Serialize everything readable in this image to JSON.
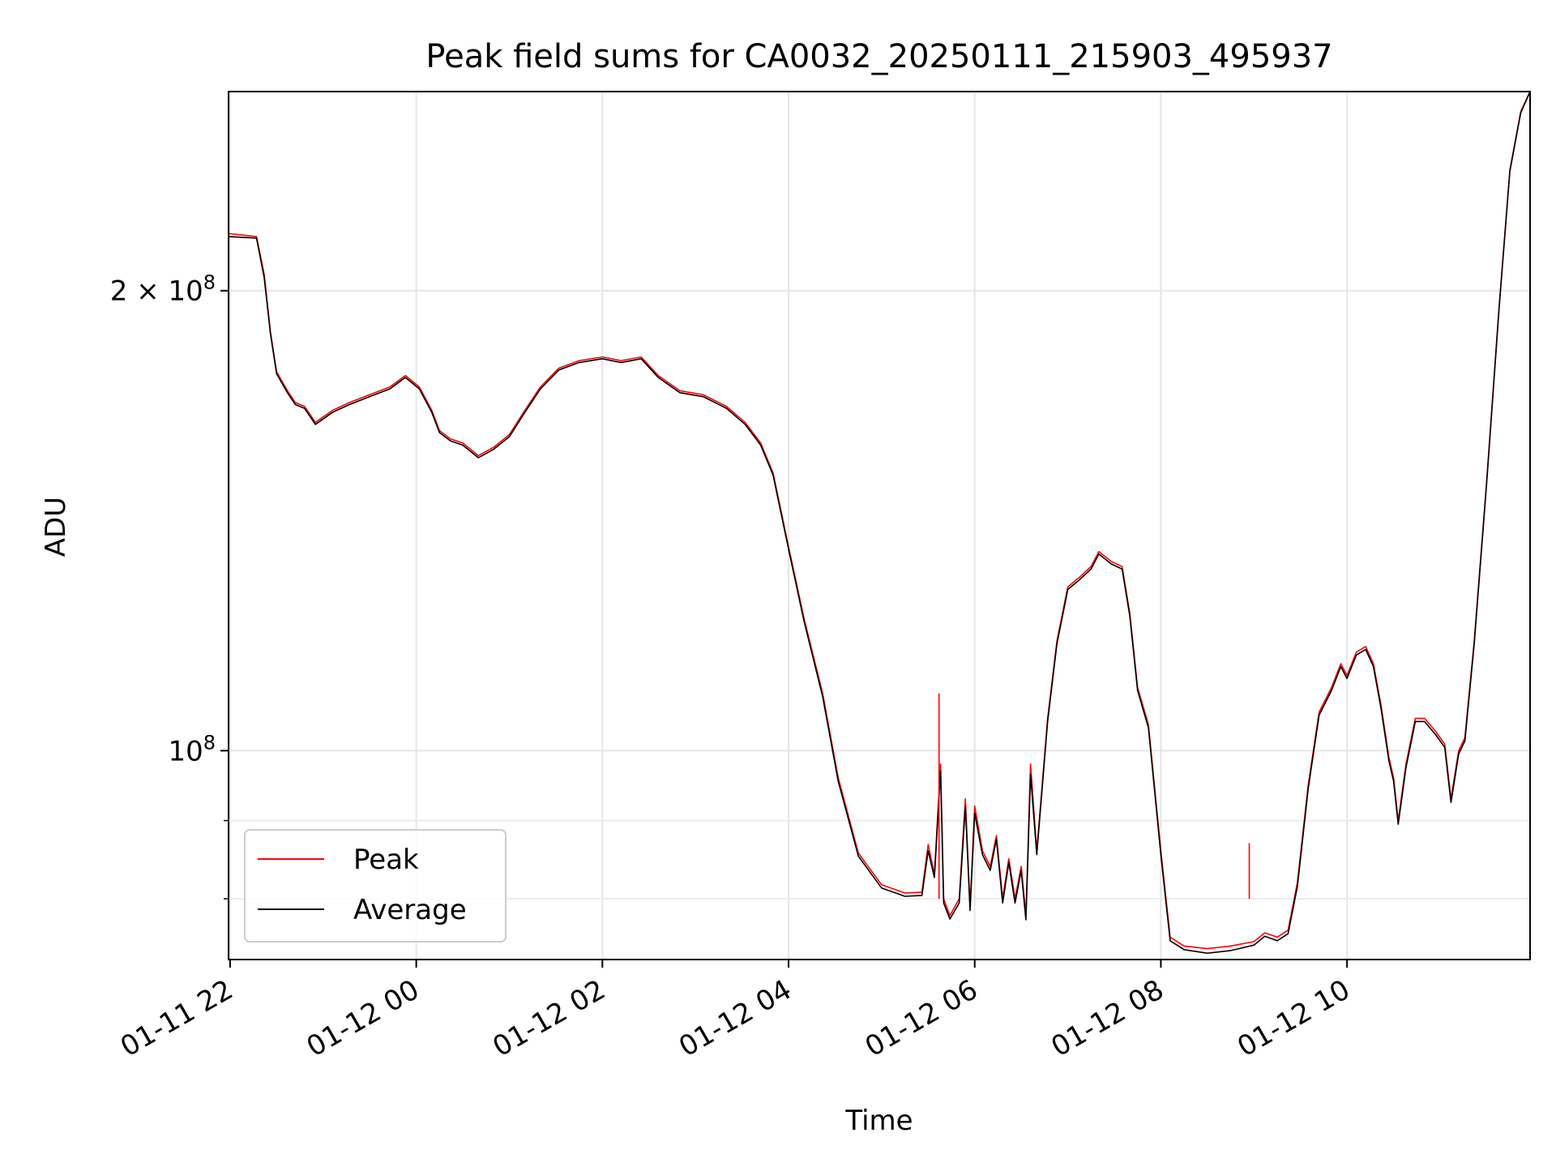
{
  "chart_data": {
    "type": "line",
    "title": "Peak field sums for CA0032_20250111_215903_495937",
    "xlabel": "Time",
    "ylabel": "ADU",
    "yscale": "log",
    "xlim": [
      "2025-01-11 21:59",
      "2025-01-12 11:58"
    ],
    "ylim": [
      73000000,
      270000000
    ],
    "grid": true,
    "legend": "lower-left",
    "xticks": [
      {
        "x": "2025-01-11 22:00",
        "label": "01-11 22"
      },
      {
        "x": "2025-01-12 00:00",
        "label": "01-12 00"
      },
      {
        "x": "2025-01-12 02:00",
        "label": "01-12 02"
      },
      {
        "x": "2025-01-12 04:00",
        "label": "01-12 04"
      },
      {
        "x": "2025-01-12 06:00",
        "label": "01-12 06"
      },
      {
        "x": "2025-01-12 08:00",
        "label": "01-12 08"
      },
      {
        "x": "2025-01-12 10:00",
        "label": "01-12 10"
      }
    ],
    "yticks_major": [
      {
        "y": 100000000,
        "base": "10",
        "exp": "8",
        "coef": ""
      },
      {
        "y": 200000000,
        "base": "10",
        "exp": "8",
        "coef": "2 × "
      }
    ],
    "yticks_minor": [
      80000000,
      90000000
    ],
    "series": [
      {
        "name": "Peak",
        "color": "#ff0000",
        "points": [
          [
            "2025-01-11 21:59",
            218000000.0
          ],
          [
            "2025-01-11 22:17",
            217000000.0
          ],
          [
            "2025-01-11 22:22",
            205000000.0
          ],
          [
            "2025-01-11 22:26",
            188000000.0
          ],
          [
            "2025-01-11 22:30",
            177000000.0
          ],
          [
            "2025-01-11 22:37",
            172000000.0
          ],
          [
            "2025-01-11 22:42",
            169000000.0
          ],
          [
            "2025-01-11 22:48",
            168000000.0
          ],
          [
            "2025-01-11 22:55",
            164000000.0
          ],
          [
            "2025-01-11 23:06",
            167000000.0
          ],
          [
            "2025-01-11 23:17",
            169000000.0
          ],
          [
            "2025-01-11 23:30",
            171000000.0
          ],
          [
            "2025-01-11 23:43",
            173000000.0
          ],
          [
            "2025-01-11 23:53",
            176000000.0
          ],
          [
            "2025-01-12 00:02",
            173000000.0
          ],
          [
            "2025-01-12 00:10",
            167000000.0
          ],
          [
            "2025-01-12 00:15",
            162000000.0
          ],
          [
            "2025-01-12 00:22",
            160000000.0
          ],
          [
            "2025-01-12 00:30",
            159000000.0
          ],
          [
            "2025-01-12 00:40",
            156000000.0
          ],
          [
            "2025-01-12 00:50",
            158000000.0
          ],
          [
            "2025-01-12 01:00",
            161000000.0
          ],
          [
            "2025-01-12 01:10",
            167000000.0
          ],
          [
            "2025-01-12 01:20",
            173000000.0
          ],
          [
            "2025-01-12 01:32",
            178000000.0
          ],
          [
            "2025-01-12 01:45",
            180000000.0
          ],
          [
            "2025-01-12 02:00",
            181000000.0
          ],
          [
            "2025-01-12 02:12",
            180000000.0
          ],
          [
            "2025-01-12 02:25",
            181000000.0
          ],
          [
            "2025-01-12 02:36",
            176000000.0
          ],
          [
            "2025-01-12 02:50",
            172000000.0
          ],
          [
            "2025-01-12 03:05",
            171000000.0
          ],
          [
            "2025-01-12 03:20",
            168000000.0
          ],
          [
            "2025-01-12 03:32",
            164000000.0
          ],
          [
            "2025-01-12 03:42",
            159000000.0
          ],
          [
            "2025-01-12 03:50",
            152000000.0
          ],
          [
            "2025-01-12 04:00",
            136000000.0
          ],
          [
            "2025-01-12 04:10",
            122000000.0
          ],
          [
            "2025-01-12 04:22",
            109000000.0
          ],
          [
            "2025-01-12 04:32",
            96000000.0
          ],
          [
            "2025-01-12 04:45",
            85700000.0
          ],
          [
            "2025-01-12 05:00",
            81700000.0
          ],
          [
            "2025-01-12 05:15",
            80700000.0
          ],
          [
            "2025-01-12 05:26",
            80800000.0
          ],
          [
            "2025-01-12 05:30",
            86800000.0
          ],
          [
            "2025-01-12 05:34",
            83000000.0
          ],
          [
            "2025-01-12 05:38",
            98000000.0
          ],
          [
            "2025-01-12 05:40",
            80000000.0
          ],
          [
            "2025-01-12 05:44",
            78000000.0
          ],
          [
            "2025-01-12 05:50",
            80000000.0
          ],
          [
            "2025-01-12 05:54",
            93000000.0
          ],
          [
            "2025-01-12 05:57",
            79000000.0
          ],
          [
            "2025-01-12 06:00",
            92000000.0
          ],
          [
            "2025-01-12 06:05",
            86000000.0
          ],
          [
            "2025-01-12 06:10",
            84000000.0
          ],
          [
            "2025-01-12 06:14",
            88000000.0
          ],
          [
            "2025-01-12 06:18",
            80000000.0
          ],
          [
            "2025-01-12 06:22",
            85000000.0
          ],
          [
            "2025-01-12 06:26",
            80000000.0
          ],
          [
            "2025-01-12 06:30",
            84000000.0
          ],
          [
            "2025-01-12 06:33",
            78000000.0
          ],
          [
            "2025-01-12 06:36",
            98000000.0
          ],
          [
            "2025-01-12 06:40",
            86000000.0
          ],
          [
            "2025-01-12 06:47",
            105000000.0
          ],
          [
            "2025-01-12 06:53",
            118000000.0
          ],
          [
            "2025-01-12 07:00",
            128000000.0
          ],
          [
            "2025-01-12 07:08",
            130000000.0
          ],
          [
            "2025-01-12 07:15",
            132000000.0
          ],
          [
            "2025-01-12 07:20",
            135000000.0
          ],
          [
            "2025-01-12 07:28",
            133000000.0
          ],
          [
            "2025-01-12 07:35",
            132000000.0
          ],
          [
            "2025-01-12 07:40",
            123000000.0
          ],
          [
            "2025-01-12 07:45",
            110000000.0
          ],
          [
            "2025-01-12 07:52",
            104000000.0
          ],
          [
            "2025-01-12 08:00",
            86000000.0
          ],
          [
            "2025-01-12 08:06",
            75500000.0
          ],
          [
            "2025-01-12 08:15",
            74500000.0
          ],
          [
            "2025-01-12 08:30",
            74200000.0
          ],
          [
            "2025-01-12 08:45",
            74500000.0
          ],
          [
            "2025-01-12 09:00",
            75000000.0
          ],
          [
            "2025-01-12 09:07",
            76000000.0
          ],
          [
            "2025-01-12 09:15",
            75500000.0
          ],
          [
            "2025-01-12 09:22",
            76300000.0
          ],
          [
            "2025-01-12 09:28",
            82000000.0
          ],
          [
            "2025-01-12 09:35",
            95000000.0
          ],
          [
            "2025-01-12 09:42",
            106000000.0
          ],
          [
            "2025-01-12 09:50",
            110000000.0
          ],
          [
            "2025-01-12 09:56",
            114000000.0
          ],
          [
            "2025-01-12 10:00",
            112000000.0
          ],
          [
            "2025-01-12 10:06",
            116000000.0
          ],
          [
            "2025-01-12 10:12",
            117000000.0
          ],
          [
            "2025-01-12 10:17",
            114000000.0
          ],
          [
            "2025-01-12 10:22",
            107000000.0
          ],
          [
            "2025-01-12 10:27",
            99000000.0
          ],
          [
            "2025-01-12 10:30",
            96000000.0
          ],
          [
            "2025-01-12 10:33",
            90000000.0
          ],
          [
            "2025-01-12 10:38",
            98000000.0
          ],
          [
            "2025-01-12 10:44",
            105000000.0
          ],
          [
            "2025-01-12 10:50",
            105000000.0
          ],
          [
            "2025-01-12 10:57",
            103000000.0
          ],
          [
            "2025-01-12 11:03",
            101000000.0
          ],
          [
            "2025-01-12 11:07",
            93000000.0
          ],
          [
            "2025-01-12 11:12",
            100000000.0
          ],
          [
            "2025-01-12 11:16",
            102000000.0
          ],
          [
            "2025-01-12 11:22",
            118000000.0
          ],
          [
            "2025-01-12 11:30",
            150000000.0
          ],
          [
            "2025-01-12 11:38",
            195000000.0
          ],
          [
            "2025-01-12 11:45",
            240000000.0
          ],
          [
            "2025-01-12 11:52",
            262000000.0
          ],
          [
            "2025-01-12 11:58",
            270000000.0
          ]
        ]
      },
      {
        "name": "Average",
        "color": "#000000",
        "points": [
          [
            "2025-01-11 21:59",
            217000000.0
          ],
          [
            "2025-01-11 22:17",
            216500000.0
          ],
          [
            "2025-01-11 22:22",
            204000000.0
          ],
          [
            "2025-01-11 22:26",
            187500000.0
          ],
          [
            "2025-01-11 22:30",
            176500000.0
          ],
          [
            "2025-01-11 22:37",
            171500000.0
          ],
          [
            "2025-01-11 22:42",
            168500000.0
          ],
          [
            "2025-01-11 22:48",
            167500000.0
          ],
          [
            "2025-01-11 22:55",
            163500000.0
          ],
          [
            "2025-01-11 23:06",
            166500000.0
          ],
          [
            "2025-01-11 23:17",
            168500000.0
          ],
          [
            "2025-01-11 23:30",
            170500000.0
          ],
          [
            "2025-01-11 23:43",
            172500000.0
          ],
          [
            "2025-01-11 23:53",
            175500000.0
          ],
          [
            "2025-01-12 00:02",
            172500000.0
          ],
          [
            "2025-01-12 00:10",
            166500000.0
          ],
          [
            "2025-01-12 00:15",
            161500000.0
          ],
          [
            "2025-01-12 00:22",
            159500000.0
          ],
          [
            "2025-01-12 00:30",
            158500000.0
          ],
          [
            "2025-01-12 00:40",
            155500000.0
          ],
          [
            "2025-01-12 00:50",
            157500000.0
          ],
          [
            "2025-01-12 01:00",
            160500000.0
          ],
          [
            "2025-01-12 01:10",
            166500000.0
          ],
          [
            "2025-01-12 01:20",
            172500000.0
          ],
          [
            "2025-01-12 01:32",
            177500000.0
          ],
          [
            "2025-01-12 01:45",
            179500000.0
          ],
          [
            "2025-01-12 02:00",
            180500000.0
          ],
          [
            "2025-01-12 02:12",
            179500000.0
          ],
          [
            "2025-01-12 02:25",
            180500000.0
          ],
          [
            "2025-01-12 02:36",
            175500000.0
          ],
          [
            "2025-01-12 02:50",
            171500000.0
          ],
          [
            "2025-01-12 03:05",
            170500000.0
          ],
          [
            "2025-01-12 03:20",
            167500000.0
          ],
          [
            "2025-01-12 03:32",
            163500000.0
          ],
          [
            "2025-01-12 03:42",
            158500000.0
          ],
          [
            "2025-01-12 03:50",
            151500000.0
          ],
          [
            "2025-01-12 04:00",
            135500000.0
          ],
          [
            "2025-01-12 04:10",
            121500000.0
          ],
          [
            "2025-01-12 04:22",
            108500000.0
          ],
          [
            "2025-01-12 04:32",
            95500000.0
          ],
          [
            "2025-01-12 04:45",
            85300000.0
          ],
          [
            "2025-01-12 05:00",
            81300000.0
          ],
          [
            "2025-01-12 05:15",
            80300000.0
          ],
          [
            "2025-01-12 05:26",
            80400000.0
          ],
          [
            "2025-01-12 05:30",
            86000000.0
          ],
          [
            "2025-01-12 05:34",
            82600000.0
          ],
          [
            "2025-01-12 05:38",
            97000000.0
          ],
          [
            "2025-01-12 05:40",
            79500000.0
          ],
          [
            "2025-01-12 05:44",
            77600000.0
          ],
          [
            "2025-01-12 05:50",
            79500000.0
          ],
          [
            "2025-01-12 05:54",
            92000000.0
          ],
          [
            "2025-01-12 05:57",
            78600000.0
          ],
          [
            "2025-01-12 06:00",
            91000000.0
          ],
          [
            "2025-01-12 06:05",
            85500000.0
          ],
          [
            "2025-01-12 06:10",
            83500000.0
          ],
          [
            "2025-01-12 06:14",
            87500000.0
          ],
          [
            "2025-01-12 06:18",
            79500000.0
          ],
          [
            "2025-01-12 06:22",
            84500000.0
          ],
          [
            "2025-01-12 06:26",
            79500000.0
          ],
          [
            "2025-01-12 06:30",
            83500000.0
          ],
          [
            "2025-01-12 06:33",
            77500000.0
          ],
          [
            "2025-01-12 06:36",
            96500000.0
          ],
          [
            "2025-01-12 06:40",
            85500000.0
          ],
          [
            "2025-01-12 06:47",
            104500000.0
          ],
          [
            "2025-01-12 06:53",
            117500000.0
          ],
          [
            "2025-01-12 07:00",
            127500000.0
          ],
          [
            "2025-01-12 07:08",
            129500000.0
          ],
          [
            "2025-01-12 07:15",
            131500000.0
          ],
          [
            "2025-01-12 07:20",
            134500000.0
          ],
          [
            "2025-01-12 07:28",
            132500000.0
          ],
          [
            "2025-01-12 07:35",
            131500000.0
          ],
          [
            "2025-01-12 07:40",
            122500000.0
          ],
          [
            "2025-01-12 07:45",
            109500000.0
          ],
          [
            "2025-01-12 07:52",
            103500000.0
          ],
          [
            "2025-01-12 08:00",
            85500000.0
          ],
          [
            "2025-01-12 08:06",
            75100000.0
          ],
          [
            "2025-01-12 08:15",
            74100000.0
          ],
          [
            "2025-01-12 08:30",
            73700000.0
          ],
          [
            "2025-01-12 08:45",
            74000000.0
          ],
          [
            "2025-01-12 09:00",
            74600000.0
          ],
          [
            "2025-01-12 09:07",
            75600000.0
          ],
          [
            "2025-01-12 09:15",
            75100000.0
          ],
          [
            "2025-01-12 09:22",
            75900000.0
          ],
          [
            "2025-01-12 09:28",
            81500000.0
          ],
          [
            "2025-01-12 09:35",
            94500000.0
          ],
          [
            "2025-01-12 09:42",
            105500000.0
          ],
          [
            "2025-01-12 09:50",
            109500000.0
          ],
          [
            "2025-01-12 09:56",
            113500000.0
          ],
          [
            "2025-01-12 10:00",
            111500000.0
          ],
          [
            "2025-01-12 10:06",
            115500000.0
          ],
          [
            "2025-01-12 10:12",
            116500000.0
          ],
          [
            "2025-01-12 10:17",
            113500000.0
          ],
          [
            "2025-01-12 10:22",
            106500000.0
          ],
          [
            "2025-01-12 10:27",
            98500000.0
          ],
          [
            "2025-01-12 10:30",
            95500000.0
          ],
          [
            "2025-01-12 10:33",
            89500000.0
          ],
          [
            "2025-01-12 10:38",
            97500000.0
          ],
          [
            "2025-01-12 10:44",
            104500000.0
          ],
          [
            "2025-01-12 10:50",
            104500000.0
          ],
          [
            "2025-01-12 10:57",
            102500000.0
          ],
          [
            "2025-01-12 11:03",
            100500000.0
          ],
          [
            "2025-01-12 11:07",
            92500000.0
          ],
          [
            "2025-01-12 11:12",
            99500000.0
          ],
          [
            "2025-01-12 11:16",
            101500000.0
          ],
          [
            "2025-01-12 11:22",
            117500000.0
          ],
          [
            "2025-01-12 11:30",
            149500000.0
          ],
          [
            "2025-01-12 11:38",
            194500000.0
          ],
          [
            "2025-01-12 11:45",
            239500000.0
          ],
          [
            "2025-01-12 11:52",
            261500000.0
          ],
          [
            "2025-01-12 11:58",
            270000000.0
          ]
        ]
      }
    ],
    "annotations": [
      {
        "series": "Peak",
        "x": "2025-01-12 05:37",
        "y": 109000000.0,
        "kind": "spike"
      },
      {
        "series": "Peak",
        "x": "2025-01-12 08:57",
        "y": 87000000.0,
        "kind": "spike"
      }
    ]
  }
}
